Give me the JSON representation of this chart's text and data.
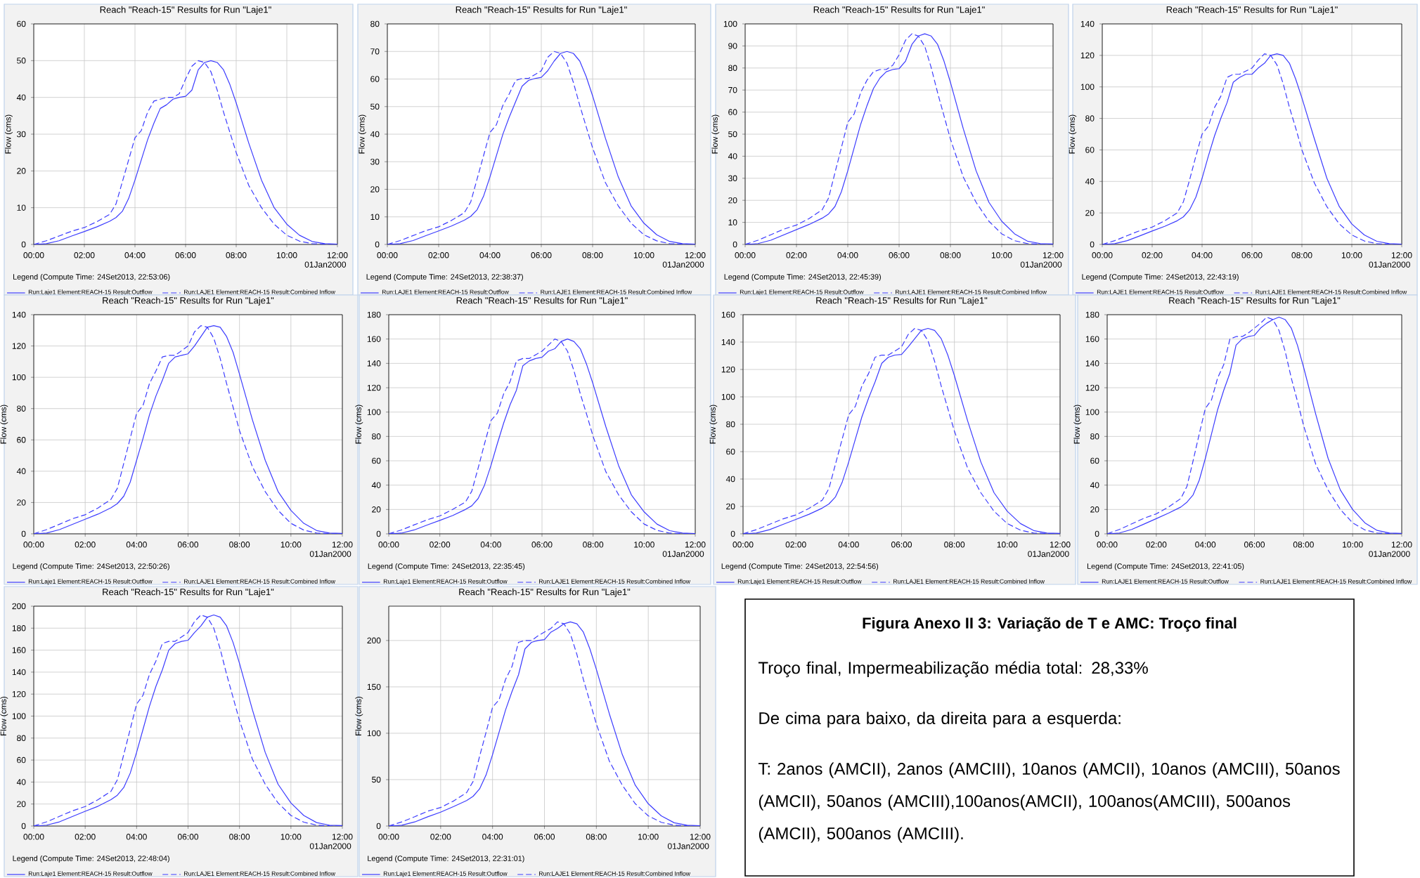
{
  "chart_data": [
    {
      "type": "line",
      "title": "Reach \"Reach-15\" Results for Run \"Laje1\"",
      "ylabel": "Flow (cms)",
      "legend_title": "Legend (Compute Time: 24Set2013, 22:53:06)",
      "annotations": [
        "01Jan2000"
      ],
      "grid": true,
      "legend": "bottom",
      "x": [
        0,
        0.5,
        1,
        1.5,
        2,
        2.5,
        3,
        3.25,
        3.5,
        3.75,
        4,
        4.25,
        4.5,
        4.75,
        5,
        5.25,
        5.5,
        5.75,
        6,
        6.25,
        6.5,
        6.75,
        7,
        7.25,
        7.5,
        7.75,
        8,
        8.5,
        9,
        9.5,
        10,
        10.5,
        11,
        11.5,
        12
      ],
      "xlim": [
        0,
        12
      ],
      "xticks": [
        {
          "value": 0,
          "label": "00:00"
        },
        {
          "value": 2,
          "label": "02:00"
        },
        {
          "value": 4,
          "label": "04:00"
        },
        {
          "value": 6,
          "label": "06:00"
        },
        {
          "value": 8,
          "label": "08:00"
        },
        {
          "value": 10,
          "label": "10:00"
        },
        {
          "value": 12,
          "label": "12:00"
        }
      ],
      "ylim": [
        0,
        60
      ],
      "yticks": [
        0,
        10,
        20,
        30,
        40,
        50,
        60
      ],
      "series": [
        {
          "name": "Run:Laje1 Element:REACH-15 Result:Outflow",
          "color": "#3c3cff",
          "line_style": "solid",
          "values": [
            0,
            0.2,
            1,
            2.3,
            3.5,
            4.8,
            6.3,
            7.3,
            9,
            12.5,
            17.5,
            23,
            28.5,
            33,
            37,
            38,
            39.5,
            40,
            40.3,
            42,
            47.5,
            49.5,
            50,
            49.5,
            47.5,
            43.5,
            38.5,
            27.5,
            17.5,
            10,
            5.5,
            2.5,
            0.8,
            0.2,
            0.1
          ]
        },
        {
          "name": "Run:LAJE1 Element:REACH-15 Result:Combined Inflow",
          "color": "#3c3cff",
          "line_style": "dashed",
          "values": [
            0,
            1,
            2.3,
            3.6,
            4.6,
            6.2,
            8.2,
            11,
            17,
            23,
            29,
            31,
            36,
            39,
            39.5,
            40,
            40,
            41,
            45,
            48.5,
            50,
            49.5,
            47,
            42,
            36,
            30.5,
            25,
            16,
            10,
            5.5,
            2.5,
            0.9,
            0.2,
            0.1,
            0
          ]
        }
      ]
    },
    {
      "type": "line",
      "title": "Reach \"Reach-15\" Results for Run \"Laje1\"",
      "ylabel": "Flow (cms)",
      "legend_title": "Legend (Compute Time: 24Set2013, 22:38:37)",
      "annotations": [
        "01Jan2000"
      ],
      "grid": true,
      "legend": "bottom",
      "x": [
        0,
        0.5,
        1,
        1.5,
        2,
        2.5,
        3,
        3.25,
        3.5,
        3.75,
        4,
        4.25,
        4.5,
        4.75,
        5,
        5.25,
        5.5,
        5.75,
        6,
        6.25,
        6.5,
        6.75,
        7,
        7.25,
        7.5,
        7.75,
        8,
        8.5,
        9,
        9.5,
        10,
        10.5,
        11,
        11.5,
        12
      ],
      "xlim": [
        0,
        12
      ],
      "xticks": [
        {
          "value": 0,
          "label": "00:00"
        },
        {
          "value": 2,
          "label": "02:00"
        },
        {
          "value": 4,
          "label": "04:00"
        },
        {
          "value": 6,
          "label": "06:00"
        },
        {
          "value": 8,
          "label": "08:00"
        },
        {
          "value": 10,
          "label": "10:00"
        },
        {
          "value": 12,
          "label": "12:00"
        }
      ],
      "ylim": [
        0,
        80
      ],
      "yticks": [
        0,
        10,
        20,
        30,
        40,
        50,
        60,
        70,
        80
      ],
      "series": [
        {
          "name": "Run:LAJE1 Element:REACH-15 Result:Outflow",
          "color": "#3c3cff",
          "line_style": "solid",
          "values": [
            0,
            0.3,
            1.4,
            3.2,
            4.9,
            6.7,
            8.8,
            10.2,
            12.6,
            17.5,
            24.5,
            32.2,
            39.9,
            46.2,
            51.8,
            57.4,
            59.5,
            60.2,
            60.6,
            63,
            66.5,
            69.3,
            70,
            69.3,
            66.5,
            60.9,
            53.9,
            38.5,
            24.5,
            14,
            7.7,
            3.5,
            1.1,
            0.3,
            0.1
          ]
        },
        {
          "name": "Run:LAJE1 Element:REACH-15 Result:Combined Inflow",
          "color": "#3c3cff",
          "line_style": "dashed",
          "values": [
            0,
            1.4,
            3.2,
            5,
            6.4,
            8.7,
            11.5,
            15.4,
            23.8,
            32.2,
            40.6,
            43.4,
            50.4,
            54.6,
            59.5,
            60.2,
            60.2,
            61.6,
            63,
            67.9,
            70,
            69.3,
            65.8,
            58.8,
            50.4,
            42.7,
            35,
            22.4,
            14,
            7.7,
            3.5,
            1.3,
            0.3,
            0.1,
            0
          ]
        }
      ]
    },
    {
      "type": "line",
      "title": "Reach \"Reach-15\" Results for Run \"Laje1\"",
      "ylabel": "Flow (cms)",
      "legend_title": "Legend (Compute Time: 24Set2013, 22:45:39)",
      "annotations": [
        "01Jan2000"
      ],
      "grid": true,
      "legend": "bottom",
      "x": [
        0,
        0.5,
        1,
        1.5,
        2,
        2.5,
        3,
        3.25,
        3.5,
        3.75,
        4,
        4.25,
        4.5,
        4.75,
        5,
        5.25,
        5.5,
        5.75,
        6,
        6.25,
        6.5,
        6.75,
        7,
        7.25,
        7.5,
        7.75,
        8,
        8.5,
        9,
        9.5,
        10,
        10.5,
        11,
        11.5,
        12
      ],
      "xlim": [
        0,
        12
      ],
      "xticks": [
        {
          "value": 0,
          "label": "00:00"
        },
        {
          "value": 2,
          "label": "02:00"
        },
        {
          "value": 4,
          "label": "04:00"
        },
        {
          "value": 6,
          "label": "06:00"
        },
        {
          "value": 8,
          "label": "08:00"
        },
        {
          "value": 10,
          "label": "10:00"
        },
        {
          "value": 12,
          "label": "12:00"
        }
      ],
      "ylim": [
        0,
        100
      ],
      "yticks": [
        0,
        10,
        20,
        30,
        40,
        50,
        60,
        70,
        80,
        90,
        100
      ],
      "series": [
        {
          "name": "Run:Laje1 Element:REACH-15 Result:Outflow",
          "color": "#3c3cff",
          "line_style": "solid",
          "values": [
            0,
            0.4,
            1.9,
            4.3,
            6.7,
            9.1,
            11.9,
            13.8,
            17.2,
            23.9,
            33.4,
            43.9,
            54.4,
            63,
            70.7,
            75.4,
            78.3,
            79.3,
            79.7,
            83.1,
            90.7,
            94.5,
            95.5,
            94.5,
            90.7,
            83.1,
            73.5,
            52.5,
            33.4,
            19.1,
            10.5,
            4.8,
            1.5,
            0.4,
            0.2
          ]
        },
        {
          "name": "Run:LAJE1 Element:REACH-15 Result:Combined Inflow",
          "color": "#3c3cff",
          "line_style": "dashed",
          "values": [
            0,
            1.9,
            4.4,
            6.9,
            8.8,
            11.8,
            15.7,
            21,
            32.5,
            43.9,
            55.4,
            59.2,
            68.8,
            74.5,
            78.3,
            79.3,
            79.3,
            81.2,
            86,
            92.6,
            95.5,
            94.5,
            89.8,
            80.2,
            68.8,
            58.3,
            47.8,
            30.6,
            19.1,
            10.5,
            4.8,
            1.7,
            0.4,
            0.1,
            0
          ]
        }
      ]
    },
    {
      "type": "line",
      "title": "Reach \"Reach-15\" Results for Run \"Laje1\"",
      "ylabel": "Flow (cms)",
      "legend_title": "Legend (Compute Time: 24Set2013, 22:43:19)",
      "annotations": [
        "01Jan2000"
      ],
      "grid": true,
      "legend": "bottom",
      "x": [
        0,
        0.5,
        1,
        1.5,
        2,
        2.5,
        3,
        3.25,
        3.5,
        3.75,
        4,
        4.25,
        4.5,
        4.75,
        5,
        5.25,
        5.5,
        5.75,
        6,
        6.25,
        6.5,
        6.75,
        7,
        7.25,
        7.5,
        7.75,
        8,
        8.5,
        9,
        9.5,
        10,
        10.5,
        11,
        11.5,
        12
      ],
      "xlim": [
        0,
        12
      ],
      "xticks": [
        {
          "value": 0,
          "label": "00:00"
        },
        {
          "value": 2,
          "label": "02:00"
        },
        {
          "value": 4,
          "label": "04:00"
        },
        {
          "value": 6,
          "label": "06:00"
        },
        {
          "value": 8,
          "label": "08:00"
        },
        {
          "value": 10,
          "label": "10:00"
        },
        {
          "value": 12,
          "label": "12:00"
        }
      ],
      "ylim": [
        0,
        140
      ],
      "yticks": [
        0,
        20,
        40,
        60,
        80,
        100,
        120,
        140
      ],
      "series": [
        {
          "name": "Run:LAJE1 Element:REACH-15 Result:Outflow",
          "color": "#3c3cff",
          "line_style": "solid",
          "values": [
            0,
            0.5,
            2.4,
            5.4,
            8.5,
            11.5,
            15,
            17.5,
            22,
            30,
            42,
            56,
            69,
            80,
            90,
            103,
            106,
            108,
            108,
            112,
            115,
            120,
            121,
            120,
            115,
            105,
            93,
            67,
            42,
            24,
            13,
            6,
            2,
            0.5,
            0.2
          ]
        },
        {
          "name": "Run:LAJE1 Element:REACH-15 Result:Combined Inflow",
          "color": "#3c3cff",
          "line_style": "dashed",
          "values": [
            0,
            2.4,
            5.6,
            8.7,
            11,
            15,
            20,
            27,
            41,
            56,
            70,
            75,
            87,
            94,
            106,
            108,
            108,
            110,
            112,
            117,
            121,
            120,
            114,
            102,
            87,
            74,
            60,
            39,
            24,
            13,
            6,
            2.2,
            0.5,
            0.1,
            0
          ]
        }
      ]
    },
    {
      "type": "line",
      "title": "Reach \"Reach-15\" Results for Run \"Laje1\"",
      "ylabel": "Flow (cms)",
      "legend_title": "Legend (Compute Time: 24Set2013, 22:50:26)",
      "annotations": [
        "01Jan2000"
      ],
      "grid": true,
      "legend": "bottom",
      "x": [
        0,
        0.5,
        1,
        1.5,
        2,
        2.5,
        3,
        3.25,
        3.5,
        3.75,
        4,
        4.25,
        4.5,
        4.75,
        5,
        5.25,
        5.5,
        5.75,
        6,
        6.25,
        6.5,
        6.75,
        7,
        7.25,
        7.5,
        7.75,
        8,
        8.5,
        9,
        9.5,
        10,
        10.5,
        11,
        11.5,
        12
      ],
      "xlim": [
        0,
        12
      ],
      "xticks": [
        {
          "value": 0,
          "label": "00:00"
        },
        {
          "value": 2,
          "label": "02:00"
        },
        {
          "value": 4,
          "label": "04:00"
        },
        {
          "value": 6,
          "label": "06:00"
        },
        {
          "value": 8,
          "label": "08:00"
        },
        {
          "value": 10,
          "label": "10:00"
        },
        {
          "value": 12,
          "label": "12:00"
        }
      ],
      "ylim": [
        0,
        140
      ],
      "yticks": [
        0,
        20,
        40,
        60,
        80,
        100,
        120,
        140
      ],
      "series": [
        {
          "name": "Run:Laje1 Element:REACH-15 Result:Outflow",
          "color": "#3c3cff",
          "line_style": "solid",
          "values": [
            0,
            0.5,
            2.7,
            6,
            9.3,
            12.6,
            16.6,
            19.3,
            24,
            33,
            47,
            61,
            76,
            88,
            98,
            109,
            113,
            114,
            115,
            120,
            126,
            132,
            133,
            132,
            126,
            116,
            102,
            73,
            47,
            27,
            15,
            6.7,
            2.1,
            0.5,
            0.3
          ]
        },
        {
          "name": "Run:LAJE1 Element:REACH-15 Result:Combined Inflow",
          "color": "#3c3cff",
          "line_style": "dashed",
          "values": [
            0,
            2.7,
            6.1,
            9.6,
            12.2,
            16.5,
            22,
            29,
            45,
            61,
            77,
            82,
            96,
            104,
            113,
            114,
            114,
            117,
            120,
            129,
            133,
            132,
            125,
            112,
            96,
            81,
            66,
            43,
            27,
            15,
            6.7,
            2.4,
            0.5,
            0.1,
            0
          ]
        }
      ]
    },
    {
      "type": "line",
      "title": "Reach \"Reach-15\" Results for Run \"Laje1\"",
      "ylabel": "Flow (cms)",
      "legend_title": "Legend (Compute Time: 24Set2013, 22:35:45)",
      "annotations": [
        "01Jan2000"
      ],
      "grid": true,
      "legend": "bottom",
      "x": [
        0,
        0.5,
        1,
        1.5,
        2,
        2.5,
        3,
        3.25,
        3.5,
        3.75,
        4,
        4.25,
        4.5,
        4.75,
        5,
        5.25,
        5.5,
        5.75,
        6,
        6.25,
        6.5,
        6.75,
        7,
        7.25,
        7.5,
        7.75,
        8,
        8.5,
        9,
        9.5,
        10,
        10.5,
        11,
        11.5,
        12
      ],
      "xlim": [
        0,
        12
      ],
      "xticks": [
        {
          "value": 0,
          "label": "00:00"
        },
        {
          "value": 2,
          "label": "02:00"
        },
        {
          "value": 4,
          "label": "04:00"
        },
        {
          "value": 6,
          "label": "06:00"
        },
        {
          "value": 8,
          "label": "08:00"
        },
        {
          "value": 10,
          "label": "10:00"
        },
        {
          "value": 12,
          "label": "12:00"
        }
      ],
      "ylim": [
        0,
        180
      ],
      "yticks": [
        0,
        20,
        40,
        60,
        80,
        100,
        120,
        140,
        160,
        180
      ],
      "series": [
        {
          "name": "Run:Laje1 Element:REACH-15 Result:Outflow",
          "color": "#3c3cff",
          "line_style": "solid",
          "values": [
            0,
            0.6,
            3.2,
            7.2,
            11,
            15,
            20,
            23,
            29,
            40,
            56,
            74,
            91,
            106,
            118,
            138,
            142,
            144,
            145,
            150,
            152,
            158,
            160,
            158,
            152,
            139,
            123,
            88,
            56,
            32,
            18,
            8,
            2.6,
            0.6,
            0.3
          ]
        },
        {
          "name": "Run:LAJE1 Element:REACH-15 Result:Combined Inflow",
          "color": "#3c3cff",
          "line_style": "dashed",
          "values": [
            0,
            3.2,
            7.4,
            11.5,
            14.7,
            20,
            26,
            35,
            54,
            74,
            93,
            99,
            115,
            125,
            142,
            144,
            144,
            147,
            150,
            155,
            160,
            158,
            150,
            134,
            115,
            98,
            80,
            51,
            32,
            18,
            8,
            2.9,
            0.6,
            0.2,
            0
          ]
        }
      ]
    },
    {
      "type": "line",
      "title": "Reach \"Reach-15\" Results for Run \"Laje1\"",
      "ylabel": "Flow (cms)",
      "legend_title": "Legend (Compute Time: 24Set2013, 22:54:56)",
      "annotations": [
        "01Jan2000"
      ],
      "grid": true,
      "legend": "bottom",
      "x": [
        0,
        0.5,
        1,
        1.5,
        2,
        2.5,
        3,
        3.25,
        3.5,
        3.75,
        4,
        4.25,
        4.5,
        4.75,
        5,
        5.25,
        5.5,
        5.75,
        6,
        6.25,
        6.5,
        6.75,
        7,
        7.25,
        7.5,
        7.75,
        8,
        8.5,
        9,
        9.5,
        10,
        10.5,
        11,
        11.5,
        12
      ],
      "xlim": [
        0,
        12
      ],
      "xticks": [
        {
          "value": 0,
          "label": "00:00"
        },
        {
          "value": 2,
          "label": "02:00"
        },
        {
          "value": 4,
          "label": "04:00"
        },
        {
          "value": 6,
          "label": "06:00"
        },
        {
          "value": 8,
          "label": "08:00"
        },
        {
          "value": 10,
          "label": "10:00"
        },
        {
          "value": 12,
          "label": "12:00"
        }
      ],
      "ylim": [
        0,
        160
      ],
      "yticks": [
        0,
        20,
        40,
        60,
        80,
        100,
        120,
        140,
        160
      ],
      "series": [
        {
          "name": "Run:Laje1 Element:REACH-15 Result:Outflow",
          "color": "#3c3cff",
          "line_style": "solid",
          "values": [
            0,
            0.6,
            3,
            6.8,
            10.5,
            14.3,
            18.8,
            21.8,
            27,
            37.5,
            52.5,
            69,
            85.5,
            99,
            111,
            124.5,
            129,
            130.5,
            131,
            136.5,
            142.5,
            148.5,
            150,
            148.5,
            142.5,
            130.5,
            115.5,
            82.5,
            52.5,
            30,
            16.5,
            7.5,
            2.4,
            0.6,
            0.3
          ]
        },
        {
          "name": "Run:LAJE1 Element:REACH-15 Result:Combined Inflow",
          "color": "#3c3cff",
          "line_style": "dashed",
          "values": [
            0,
            3,
            6.9,
            10.8,
            13.8,
            18.6,
            24.6,
            33,
            51,
            69,
            87,
            93,
            108,
            117,
            129,
            130.5,
            130.5,
            133.5,
            136.5,
            145.5,
            150,
            148.5,
            141,
            126,
            108,
            91.5,
            75,
            48,
            30,
            16.5,
            7.5,
            2.7,
            0.6,
            0.2,
            0
          ]
        }
      ]
    },
    {
      "type": "line",
      "title": "Reach \"Reach-15\" Results for Run \"Laje1\"",
      "ylabel": "Flow (cms)",
      "legend_title": "Legend (Compute Time: 24Set2013, 22:41:05)",
      "annotations": [
        "01Jan2000"
      ],
      "grid": true,
      "legend": "bottom",
      "x": [
        0,
        0.5,
        1,
        1.5,
        2,
        2.5,
        3,
        3.25,
        3.5,
        3.75,
        4,
        4.25,
        4.5,
        4.75,
        5,
        5.25,
        5.5,
        5.75,
        6,
        6.25,
        6.5,
        6.75,
        7,
        7.25,
        7.5,
        7.75,
        8,
        8.5,
        9,
        9.5,
        10,
        10.5,
        11,
        11.5,
        12
      ],
      "xlim": [
        0,
        12
      ],
      "xticks": [
        {
          "value": 0,
          "label": "00:00"
        },
        {
          "value": 2,
          "label": "02:00"
        },
        {
          "value": 4,
          "label": "04:00"
        },
        {
          "value": 6,
          "label": "06:00"
        },
        {
          "value": 8,
          "label": "08:00"
        },
        {
          "value": 10,
          "label": "10:00"
        },
        {
          "value": 12,
          "label": "12:00"
        }
      ],
      "ylim": [
        0,
        180
      ],
      "yticks": [
        0,
        20,
        40,
        60,
        80,
        100,
        120,
        140,
        160,
        180
      ],
      "series": [
        {
          "name": "Run:LAJE1 Element:REACH-15 Result:Outflow",
          "color": "#3c3cff",
          "line_style": "solid",
          "values": [
            0,
            0.7,
            3.6,
            8,
            12.5,
            17,
            22,
            26,
            32,
            44,
            62,
            82,
            102,
            118,
            132,
            155,
            160,
            162,
            163,
            169,
            173,
            176,
            178,
            176,
            169,
            155,
            137,
            98,
            62,
            36,
            20,
            9,
            2.8,
            0.7,
            0.4
          ]
        },
        {
          "name": "Run:LAJE1 Element:REACH-15 Result:Combined Inflow",
          "color": "#3c3cff",
          "line_style": "dashed",
          "values": [
            0,
            3.6,
            8.2,
            12.8,
            16.4,
            22,
            29,
            39,
            60,
            82,
            103,
            110,
            128,
            139,
            160,
            162,
            162,
            165,
            169,
            173,
            178,
            176,
            167,
            150,
            128,
            109,
            89,
            57,
            36,
            20,
            9,
            3.2,
            0.7,
            0.2,
            0
          ]
        }
      ]
    },
    {
      "type": "line",
      "title": "Reach \"Reach-15\" Results for Run \"Laje1\"",
      "ylabel": "Flow (cms)",
      "legend_title": "Legend (Compute Time: 24Set2013, 22:48:04)",
      "annotations": [
        "01Jan2000"
      ],
      "grid": true,
      "legend": "bottom",
      "x": [
        0,
        0.5,
        1,
        1.5,
        2,
        2.5,
        3,
        3.25,
        3.5,
        3.75,
        4,
        4.25,
        4.5,
        4.75,
        5,
        5.25,
        5.5,
        5.75,
        6,
        6.25,
        6.5,
        6.75,
        7,
        7.25,
        7.5,
        7.75,
        8,
        8.5,
        9,
        9.5,
        10,
        10.5,
        11,
        11.5,
        12
      ],
      "xlim": [
        0,
        12
      ],
      "xticks": [
        {
          "value": 0,
          "label": "00:00"
        },
        {
          "value": 2,
          "label": "02:00"
        },
        {
          "value": 4,
          "label": "04:00"
        },
        {
          "value": 6,
          "label": "06:00"
        },
        {
          "value": 8,
          "label": "08:00"
        },
        {
          "value": 10,
          "label": "10:00"
        },
        {
          "value": 12,
          "label": "12:00"
        }
      ],
      "ylim": [
        0,
        200
      ],
      "yticks": [
        0,
        20,
        40,
        60,
        80,
        100,
        120,
        140,
        160,
        180,
        200
      ],
      "series": [
        {
          "name": "Run:Laje1 Element:REACH-15 Result:Outflow",
          "color": "#3c3cff",
          "line_style": "solid",
          "values": [
            0,
            0.8,
            3.8,
            8.6,
            13.4,
            18,
            24,
            28,
            35,
            48,
            67,
            88,
            109,
            127,
            142,
            160,
            166,
            168,
            169,
            176,
            182,
            190,
            192,
            190,
            182,
            167,
            148,
            106,
            67,
            38,
            21,
            9.6,
            3.1,
            0.8,
            0.4
          ]
        },
        {
          "name": "Run:LAJE1 Element:REACH-15 Result:Combined Inflow",
          "color": "#3c3cff",
          "line_style": "dashed",
          "values": [
            0,
            3.8,
            8.8,
            13.8,
            17.7,
            24,
            31.5,
            42,
            65,
            88,
            111,
            119,
            138,
            150,
            166,
            168,
            168,
            172,
            176,
            186,
            192,
            190,
            180,
            161,
            138,
            117,
            96,
            61,
            38,
            21,
            9.6,
            3.5,
            0.8,
            0.2,
            0
          ]
        }
      ]
    },
    {
      "type": "line",
      "title": "Reach \"Reach-15\" Results for Run \"Laje1\"",
      "ylabel": "Flow (cms)",
      "legend_title": "Legend (Compute Time: 24Set2013, 22:31:01)",
      "annotations": [
        "01Jan2000"
      ],
      "grid": true,
      "legend": "bottom",
      "x": [
        0,
        0.5,
        1,
        1.5,
        2,
        2.5,
        3,
        3.25,
        3.5,
        3.75,
        4,
        4.25,
        4.5,
        4.75,
        5,
        5.25,
        5.5,
        5.75,
        6,
        6.25,
        6.5,
        6.75,
        7,
        7.25,
        7.5,
        7.75,
        8,
        8.5,
        9,
        9.5,
        10,
        10.5,
        11,
        11.5,
        12
      ],
      "xlim": [
        0,
        12
      ],
      "xticks": [
        {
          "value": 0,
          "label": "00:00"
        },
        {
          "value": 2,
          "label": "02:00"
        },
        {
          "value": 4,
          "label": "04:00"
        },
        {
          "value": 6,
          "label": "06:00"
        },
        {
          "value": 8,
          "label": "08:00"
        },
        {
          "value": 10,
          "label": "10:00"
        },
        {
          "value": 12,
          "label": "12:00"
        }
      ],
      "ylim": [
        0,
        237
      ],
      "yticks": [
        0,
        50,
        100,
        150,
        200
      ],
      "series": [
        {
          "name": "Run:Laje1 Element:REACH-15 Result:Outflow",
          "color": "#3c3cff",
          "line_style": "solid",
          "values": [
            0,
            0.9,
            4.4,
            9.9,
            15,
            21,
            27.5,
            32,
            40,
            55,
            77,
            101,
            125,
            145,
            163,
            191,
            198,
            200,
            201,
            209,
            213,
            218,
            220,
            218,
            209,
            191,
            169,
            121,
            77,
            44,
            24,
            11,
            3.5,
            0.9,
            0.4
          ]
        },
        {
          "name": "Run:LAJE1 Element:REACH-15 Result:Combined Inflow",
          "color": "#3c3cff",
          "line_style": "dashed",
          "values": [
            0,
            4.4,
            10,
            16,
            20,
            27,
            36,
            48,
            75,
            101,
            128,
            136,
            158,
            172,
            198,
            200,
            200,
            205,
            209,
            213,
            220,
            218,
            207,
            185,
            158,
            134,
            110,
            70,
            44,
            24,
            11,
            4,
            0.9,
            0.2,
            0
          ]
        }
      ]
    },
    {
      "type": "other",
      "title": "Figura Anexo II 3: Variação de T e AMC: Troço final",
      "annotations": [
        "Troço final, Impermeabilização média total: 28,33%",
        "De cima para baixo, da direita para a esquerda:",
        "T: 2anos (AMCII), 2anos (AMCIII), 10anos (AMCII), 10anos (AMCIII), 50anos (AMCII), 50anos (AMCIII),100anos(AMCII), 100anos(AMCIII), 500anos (AMCII), 500anos (AMCIII)."
      ]
    }
  ]
}
